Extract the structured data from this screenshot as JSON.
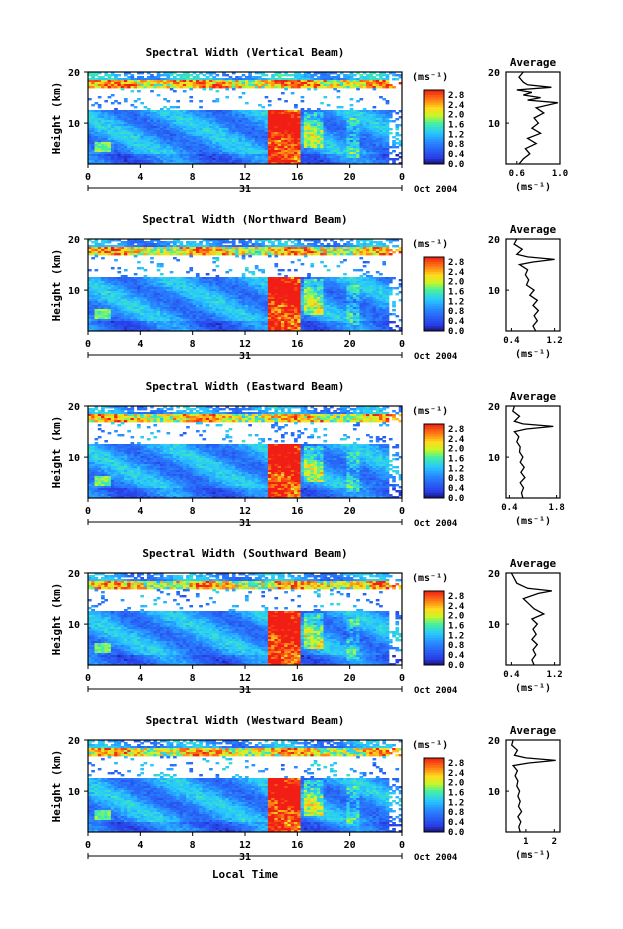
{
  "figure": {
    "xlabel": "Local Time",
    "date_label": "Oct 2004",
    "day_label": "31",
    "ylabel": "Height (km)",
    "colorbar_unit": "(ms⁻¹)",
    "avg_title": "Average",
    "avg_xlabel": "(ms⁻¹)"
  },
  "chart_data": [
    {
      "type": "heatmap",
      "title": "Spectral Width (Vertical Beam)",
      "x_ticks": [
        "0",
        "4",
        "8",
        "12",
        "16",
        "20",
        "0"
      ],
      "xlim": [
        0,
        24
      ],
      "y_ticks": [
        "20",
        "10"
      ],
      "ylim": [
        2,
        20
      ],
      "colorbar_ticks": [
        "2.8",
        "2.4",
        "2.0",
        "1.6",
        "1.2",
        "0.8",
        "0.4",
        "0.0"
      ],
      "colorbar_range": [
        0.0,
        3.0
      ],
      "avg_ticks": [
        "0.6",
        "1.0"
      ],
      "avg_xlim": [
        0.5,
        1.0
      ],
      "avg_profile": [
        [
          0.62,
          2
        ],
        [
          0.66,
          3
        ],
        [
          0.72,
          4
        ],
        [
          0.68,
          5
        ],
        [
          0.78,
          6
        ],
        [
          0.7,
          7
        ],
        [
          0.82,
          8
        ],
        [
          0.74,
          9
        ],
        [
          0.8,
          10
        ],
        [
          0.76,
          11
        ],
        [
          0.85,
          12
        ],
        [
          0.78,
          13
        ],
        [
          0.98,
          14
        ],
        [
          0.7,
          14.5
        ],
        [
          0.82,
          15
        ],
        [
          0.66,
          15.5
        ],
        [
          0.74,
          16
        ],
        [
          0.6,
          16.5
        ],
        [
          0.92,
          17
        ],
        [
          0.7,
          17.5
        ],
        [
          0.66,
          18
        ],
        [
          0.62,
          19
        ],
        [
          0.66,
          20
        ]
      ]
    },
    {
      "type": "heatmap",
      "title": "Spectral Width (Northward Beam)",
      "x_ticks": [
        "0",
        "4",
        "8",
        "12",
        "16",
        "20",
        "0"
      ],
      "xlim": [
        0,
        24
      ],
      "y_ticks": [
        "20",
        "10"
      ],
      "ylim": [
        2,
        20
      ],
      "colorbar_ticks": [
        "2.8",
        "2.4",
        "2.0",
        "1.6",
        "1.2",
        "0.8",
        "0.4",
        "0.0"
      ],
      "colorbar_range": [
        0.0,
        3.0
      ],
      "avg_ticks": [
        "0.4",
        "1.2"
      ],
      "avg_xlim": [
        0.3,
        1.3
      ],
      "avg_profile": [
        [
          0.85,
          2
        ],
        [
          0.8,
          3
        ],
        [
          0.88,
          4
        ],
        [
          0.82,
          5
        ],
        [
          0.9,
          6
        ],
        [
          0.8,
          7
        ],
        [
          0.88,
          8
        ],
        [
          0.74,
          9
        ],
        [
          0.82,
          10
        ],
        [
          0.68,
          11
        ],
        [
          0.72,
          12
        ],
        [
          0.66,
          13
        ],
        [
          0.7,
          14
        ],
        [
          0.55,
          15
        ],
        [
          0.8,
          15.5
        ],
        [
          1.2,
          16
        ],
        [
          0.7,
          16.5
        ],
        [
          0.5,
          17
        ],
        [
          0.6,
          18
        ],
        [
          0.45,
          19
        ],
        [
          0.5,
          20
        ]
      ]
    },
    {
      "type": "heatmap",
      "title": "Spectral Width (Eastward Beam)",
      "x_ticks": [
        "0",
        "4",
        "8",
        "12",
        "16",
        "20",
        "0"
      ],
      "xlim": [
        0,
        24
      ],
      "y_ticks": [
        "20",
        "10"
      ],
      "ylim": [
        2,
        20
      ],
      "colorbar_ticks": [
        "2.8",
        "2.4",
        "2.0",
        "1.6",
        "1.2",
        "0.8",
        "0.4",
        "0.0"
      ],
      "colorbar_range": [
        0.0,
        3.0
      ],
      "avg_ticks": [
        "0.4",
        "1.8"
      ],
      "avg_xlim": [
        0.3,
        1.9
      ],
      "avg_profile": [
        [
          0.8,
          2
        ],
        [
          0.76,
          3
        ],
        [
          0.82,
          4
        ],
        [
          0.72,
          5
        ],
        [
          0.86,
          6
        ],
        [
          0.74,
          7
        ],
        [
          0.84,
          8
        ],
        [
          0.72,
          9
        ],
        [
          0.8,
          10
        ],
        [
          0.7,
          11
        ],
        [
          0.72,
          12
        ],
        [
          0.62,
          13
        ],
        [
          0.68,
          14
        ],
        [
          0.55,
          15
        ],
        [
          0.9,
          15.5
        ],
        [
          1.7,
          16
        ],
        [
          0.8,
          16.5
        ],
        [
          0.55,
          17
        ],
        [
          0.7,
          18
        ],
        [
          0.5,
          19
        ],
        [
          0.55,
          20
        ]
      ]
    },
    {
      "type": "heatmap",
      "title": "Spectral Width (Southward Beam)",
      "x_ticks": [
        "0",
        "4",
        "8",
        "12",
        "16",
        "20",
        "0"
      ],
      "xlim": [
        0,
        24
      ],
      "y_ticks": [
        "20",
        "10"
      ],
      "ylim": [
        2,
        20
      ],
      "colorbar_ticks": [
        "2.8",
        "2.4",
        "2.0",
        "1.6",
        "1.2",
        "0.8",
        "0.4",
        "0.0"
      ],
      "colorbar_range": [
        0.0,
        3.0
      ],
      "avg_ticks": [
        "0.4",
        "1.2"
      ],
      "avg_xlim": [
        0.3,
        1.3
      ],
      "avg_profile": [
        [
          0.82,
          2
        ],
        [
          0.78,
          3
        ],
        [
          0.85,
          4
        ],
        [
          0.8,
          5
        ],
        [
          0.88,
          6
        ],
        [
          0.78,
          7
        ],
        [
          0.86,
          8
        ],
        [
          0.8,
          9
        ],
        [
          0.88,
          10
        ],
        [
          0.78,
          11
        ],
        [
          1.0,
          12
        ],
        [
          0.82,
          13
        ],
        [
          0.72,
          14
        ],
        [
          0.62,
          15
        ],
        [
          0.9,
          16
        ],
        [
          1.15,
          16.5
        ],
        [
          0.7,
          17
        ],
        [
          0.5,
          18
        ],
        [
          0.45,
          19
        ],
        [
          0.4,
          20
        ]
      ]
    },
    {
      "type": "heatmap",
      "title": "Spectral Width (Westward Beam)",
      "x_ticks": [
        "0",
        "4",
        "8",
        "12",
        "16",
        "20",
        "0"
      ],
      "xlim": [
        0,
        24
      ],
      "y_ticks": [
        "20",
        "10"
      ],
      "ylim": [
        2,
        20
      ],
      "colorbar_ticks": [
        "2.8",
        "2.4",
        "2.0",
        "1.6",
        "1.2",
        "0.8",
        "0.4",
        "0.0"
      ],
      "colorbar_range": [
        0.0,
        3.0
      ],
      "avg_ticks": [
        "1",
        "2"
      ],
      "avg_xlim": [
        0.3,
        2.2
      ],
      "avg_profile": [
        [
          0.8,
          2
        ],
        [
          0.75,
          3
        ],
        [
          0.82,
          4
        ],
        [
          0.72,
          5
        ],
        [
          0.85,
          6
        ],
        [
          0.74,
          7
        ],
        [
          0.8,
          8
        ],
        [
          0.72,
          9
        ],
        [
          0.78,
          10
        ],
        [
          0.68,
          11
        ],
        [
          0.72,
          12
        ],
        [
          0.62,
          13
        ],
        [
          0.7,
          14
        ],
        [
          0.55,
          15
        ],
        [
          1.1,
          15.5
        ],
        [
          2.05,
          16
        ],
        [
          1.0,
          16.5
        ],
        [
          0.6,
          17
        ],
        [
          0.7,
          18
        ],
        [
          0.5,
          19
        ],
        [
          0.55,
          20
        ]
      ]
    }
  ]
}
